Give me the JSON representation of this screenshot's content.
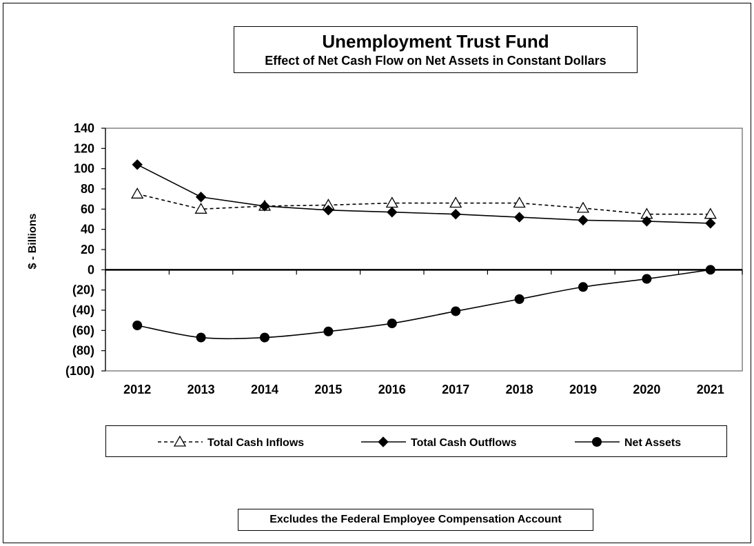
{
  "title": "Unemployment Trust Fund",
  "subtitle": "Effect of Net Cash Flow on Net Assets in Constant Dollars",
  "footnote": "Excludes the Federal Employee Compensation Account",
  "chart_data": {
    "type": "line",
    "title": "Unemployment Trust Fund",
    "subtitle": "Effect of Net Cash Flow on Net Assets in Constant Dollars",
    "xlabel": "",
    "ylabel": "$ - Billions",
    "ylim": [
      -100,
      140
    ],
    "y_ticks": [
      140,
      120,
      100,
      80,
      60,
      40,
      20,
      0,
      -20,
      -40,
      -60,
      -80,
      -100
    ],
    "y_tick_labels": [
      "140",
      "120",
      "100",
      "80",
      "60",
      "40",
      "20",
      "0",
      "(20)",
      "(40)",
      "(60)",
      "(80)",
      "(100)"
    ],
    "x": [
      "2012",
      "2013",
      "2014",
      "2015",
      "2016",
      "2017",
      "2018",
      "2019",
      "2020",
      "2021"
    ],
    "legend_position": "bottom",
    "grid": false,
    "series": [
      {
        "name": "Total Cash Inflows",
        "marker": "open-triangle",
        "line": "dashed",
        "color": "#000000",
        "values": [
          75,
          60,
          63,
          64,
          66,
          66,
          66,
          61,
          55,
          55
        ]
      },
      {
        "name": "Total Cash Outflows",
        "marker": "filled-diamond",
        "line": "solid",
        "color": "#000000",
        "values": [
          104,
          72,
          63,
          59,
          57,
          55,
          52,
          49,
          48,
          46
        ]
      },
      {
        "name": "Net Assets",
        "marker": "filled-circle",
        "line": "smooth",
        "color": "#000000",
        "values": [
          -55,
          -67,
          -67,
          -61,
          -53,
          -41,
          -29,
          -17,
          -9,
          0
        ]
      }
    ]
  }
}
